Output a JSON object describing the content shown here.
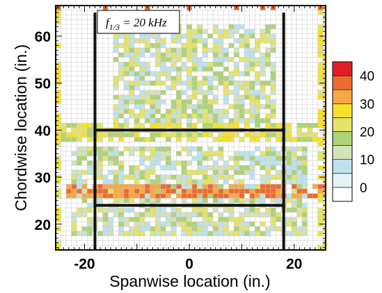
{
  "chart_data": {
    "type": "heatmap",
    "title": "",
    "annotation": {
      "prefix": "f",
      "subscript": "1/3",
      "text": " = 20 kHz"
    },
    "xlabel": "Spanwise location (in.)",
    "ylabel": "Chordwise location (in.)",
    "xlim": [
      -25.5,
      26
    ],
    "ylim": [
      14.5,
      66.5
    ],
    "xticks": [
      -20,
      0,
      20
    ],
    "xtick_labels": [
      "-20",
      "0",
      "20"
    ],
    "yticks": [
      20,
      30,
      40,
      50,
      60
    ],
    "ytick_labels": [
      "20",
      "30",
      "40",
      "50",
      "60"
    ],
    "grid_spacing_in": 1,
    "colorbar": {
      "levels": [
        0,
        5,
        10,
        15,
        20,
        25,
        30,
        35,
        40
      ],
      "colors": [
        "#ffffff",
        "#e4f1f6",
        "#bde1ef",
        "#d3e2b8",
        "#afd276",
        "#e4e36a",
        "#f7e02c",
        "#f5a844",
        "#ec6b31",
        "#e21f26"
      ],
      "tick_values": [
        0,
        10,
        20,
        30,
        40
      ],
      "tick_labels": [
        "0",
        "10",
        "20",
        "30",
        "40"
      ]
    },
    "region_lines": {
      "vertical_x": [
        -18,
        18
      ],
      "vertical_y_range": [
        14.5,
        65
      ],
      "horizontal_y": [
        24,
        40
      ],
      "horizontal_x_range": [
        -18,
        18
      ]
    },
    "bands": [
      {
        "y_range": [
          26,
          28
        ],
        "x_range": [
          -24,
          26
        ],
        "level_range": [
          30,
          40
        ],
        "description_level": "peak"
      },
      {
        "y_range": [
          38,
          41
        ],
        "x_range": [
          -25,
          26
        ],
        "level_range": [
          15,
          30
        ]
      },
      {
        "y_range": [
          42,
          62
        ],
        "x_range": [
          -14,
          16
        ],
        "level_range": [
          5,
          25
        ]
      },
      {
        "y_range": [
          18,
          36
        ],
        "x_range": [
          -22,
          22
        ],
        "level_range": [
          5,
          25
        ]
      }
    ],
    "peak_cells": [
      [
        -19,
        27
      ],
      [
        -18,
        27
      ],
      [
        -17,
        28
      ],
      [
        -16,
        27
      ],
      [
        -12,
        26
      ],
      [
        -8,
        27
      ],
      [
        -6,
        26
      ],
      [
        -3,
        27
      ],
      [
        0,
        26
      ],
      [
        3,
        26
      ],
      [
        7,
        26
      ],
      [
        8,
        27
      ],
      [
        13,
        27
      ],
      [
        15,
        28
      ],
      [
        16,
        27
      ],
      [
        17,
        28
      ],
      [
        18,
        26
      ],
      [
        22,
        27
      ],
      [
        23,
        26
      ],
      [
        21,
        27
      ]
    ],
    "edge_high_cells": [
      [
        -25,
        66
      ],
      [
        -16,
        66
      ],
      [
        -8,
        66
      ],
      [
        0,
        66
      ],
      [
        9,
        66
      ],
      [
        14,
        66
      ],
      [
        16,
        66
      ],
      [
        25,
        66
      ]
    ]
  }
}
